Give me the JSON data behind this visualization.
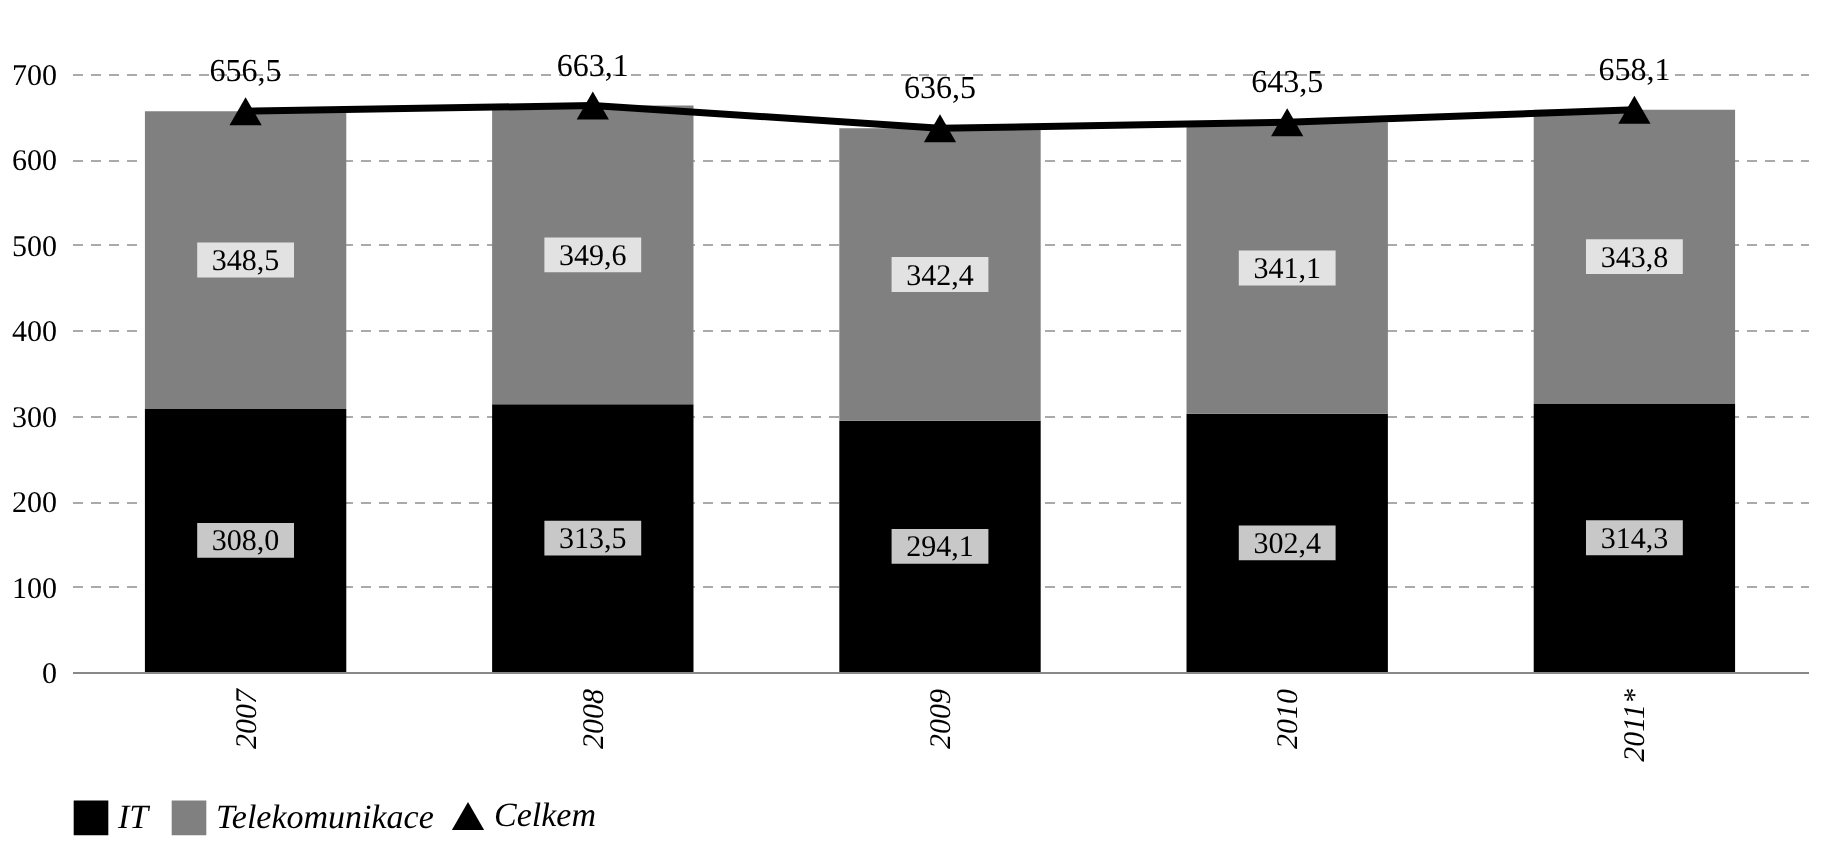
{
  "chart_data": {
    "type": "bar",
    "stacked": true,
    "categories": [
      "2007",
      "2008",
      "2009",
      "2010",
      "2011*"
    ],
    "series": [
      {
        "name": "IT",
        "color": "#000000",
        "values": [
          308.0,
          313.5,
          294.1,
          302.4,
          314.3
        ],
        "value_labels": [
          "308,0",
          "313,5",
          "294,1",
          "302,4",
          "314,3"
        ]
      },
      {
        "name": "Telekomunikace",
        "color": "#808080",
        "values": [
          348.5,
          349.6,
          342.4,
          341.1,
          343.8
        ],
        "value_labels": [
          "348,5",
          "349,6",
          "342,4",
          "341,1",
          "343,8"
        ]
      },
      {
        "name": "Celkem",
        "type": "line",
        "color": "#000000",
        "marker": "triangle",
        "values": [
          656.5,
          663.1,
          636.5,
          643.5,
          658.1
        ],
        "value_labels": [
          "656,5",
          "663,1",
          "636,5",
          "643,5",
          "658,1"
        ]
      }
    ],
    "ylim": [
      0,
      700
    ],
    "yticks": [
      0,
      100,
      200,
      300,
      400,
      500,
      600,
      700
    ],
    "grid": "y",
    "legend": "bottom"
  }
}
